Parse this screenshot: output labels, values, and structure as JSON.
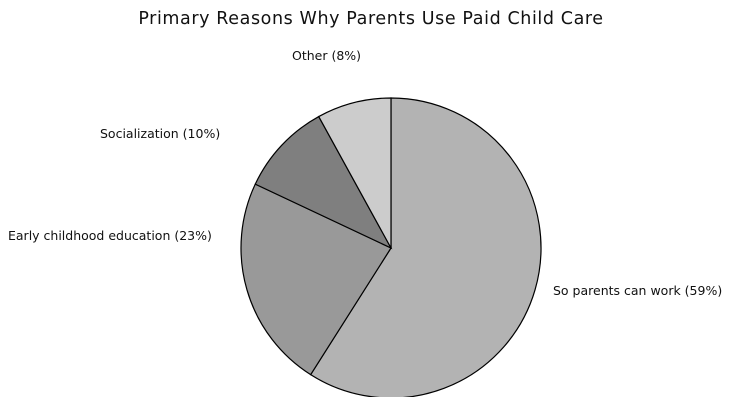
{
  "chart_data": {
    "type": "pie",
    "title": "Primary Reasons Why Parents Use Paid Child Care",
    "slices": [
      {
        "label": "So parents can work (59%)",
        "value": 59,
        "color": "#b3b3b3"
      },
      {
        "label": "Early childhood education (23%)",
        "value": 23,
        "color": "#999999"
      },
      {
        "label": "Socialization (10%)",
        "value": 10,
        "color": "#7f7f7f"
      },
      {
        "label": "Other (8%)",
        "value": 8,
        "color": "#cccccc"
      }
    ],
    "start_angle_deg": 0,
    "direction": "clockwise",
    "legend": "none",
    "slice_outline_color": "#000000"
  }
}
